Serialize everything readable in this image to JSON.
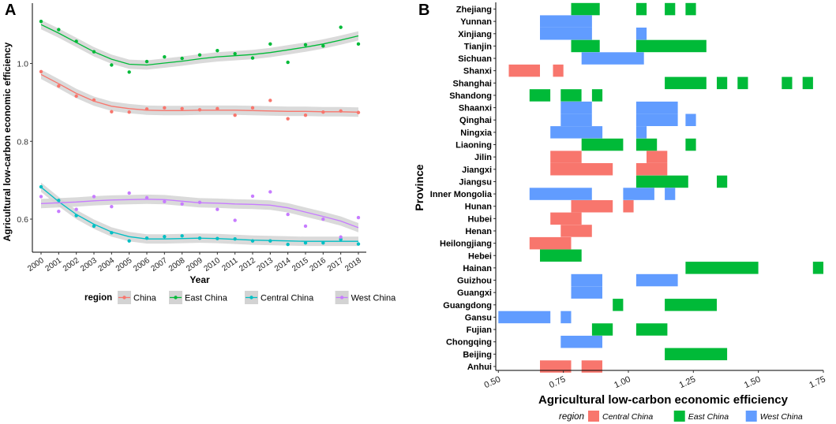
{
  "colors": {
    "China": "#F8766D",
    "East China": "#00BA38",
    "Central China": "#00BFC4",
    "West China": "#C77CFF",
    "B_Central China": "#F8766D",
    "B_East China": "#00BA38",
    "B_West China": "#619CFF",
    "band": "#D3D3D3"
  },
  "panelA": {
    "label": "A",
    "xlabel": "Year",
    "ylabel": "Agricultural low-carbon economic efficiency",
    "legend_title": "region",
    "legend_position": "bottom"
  },
  "panelB": {
    "label": "B",
    "xlabel": "Agricultural low-carbon economic efficiency",
    "ylabel": "Province",
    "legend_title": "region",
    "legend_position": "bottom"
  },
  "chart_data": [
    {
      "type": "scatter",
      "panel": "A",
      "title": "",
      "xlabel": "Year",
      "ylabel": "Agricultural low-carbon economic efficiency",
      "categories": [
        "2000",
        "2001",
        "2002",
        "2003",
        "2004",
        "2005",
        "2006",
        "2007",
        "2008",
        "2009",
        "2010",
        "2011",
        "2012",
        "2013",
        "2014",
        "2015",
        "2016",
        "2017",
        "2018"
      ],
      "yticks": [
        0.6,
        0.8,
        1.0
      ],
      "ylim": [
        0.515,
        1.155
      ],
      "series": [
        {
          "name": "China",
          "values": [
            0.979,
            0.942,
            0.916,
            0.906,
            0.876,
            0.875,
            0.883,
            0.886,
            0.884,
            0.881,
            0.884,
            0.867,
            0.886,
            0.905,
            0.858,
            0.867,
            0.875,
            0.878,
            0.874
          ],
          "smooth": [
            0.972,
            0.948,
            0.923,
            0.903,
            0.89,
            0.884,
            0.88,
            0.879,
            0.879,
            0.88,
            0.88,
            0.88,
            0.879,
            0.878,
            0.877,
            0.877,
            0.876,
            0.876,
            0.875
          ]
        },
        {
          "name": "East China",
          "values": [
            1.108,
            1.087,
            1.057,
            1.03,
            0.996,
            0.978,
            1.005,
            1.017,
            1.013,
            1.022,
            1.033,
            1.025,
            1.014,
            1.05,
            1.003,
            1.048,
            1.045,
            1.093,
            1.05
          ],
          "smooth": [
            1.1,
            1.078,
            1.054,
            1.03,
            1.011,
            0.998,
            0.996,
            1.001,
            1.006,
            1.012,
            1.017,
            1.02,
            1.023,
            1.028,
            1.035,
            1.042,
            1.05,
            1.06,
            1.071
          ]
        },
        {
          "name": "Central China",
          "values": [
            0.683,
            0.648,
            0.609,
            0.582,
            0.565,
            0.544,
            0.551,
            0.555,
            0.557,
            0.551,
            0.55,
            0.549,
            0.544,
            0.544,
            0.535,
            0.539,
            0.539,
            0.548,
            0.536
          ],
          "smooth": [
            0.682,
            0.645,
            0.612,
            0.587,
            0.567,
            0.555,
            0.549,
            0.549,
            0.55,
            0.551,
            0.55,
            0.548,
            0.546,
            0.545,
            0.544,
            0.543,
            0.543,
            0.543,
            0.543
          ]
        },
        {
          "name": "West China",
          "values": [
            0.658,
            0.62,
            0.625,
            0.658,
            0.632,
            0.667,
            0.655,
            0.645,
            0.639,
            0.643,
            0.625,
            0.597,
            0.659,
            0.67,
            0.612,
            0.582,
            0.6,
            0.554,
            0.604
          ],
          "smooth": [
            0.64,
            0.642,
            0.644,
            0.647,
            0.649,
            0.65,
            0.651,
            0.65,
            0.646,
            0.642,
            0.641,
            0.639,
            0.638,
            0.636,
            0.629,
            0.618,
            0.607,
            0.595,
            0.578
          ]
        }
      ]
    },
    {
      "type": "heatmap",
      "panel": "B",
      "title": "",
      "xlabel": "Agricultural low-carbon economic efficiency",
      "ylabel": "Province",
      "xticks": [
        0.5,
        0.75,
        1.0,
        1.25,
        1.5,
        1.75
      ],
      "xtick_labels": [
        "0.50",
        "0.75",
        "1.00",
        "1.25",
        "1.50",
        "1.75"
      ],
      "xlim": [
        0.49,
        1.75
      ],
      "legend": [
        "Central China",
        "East China",
        "West China"
      ],
      "provinces": [
        {
          "name": "Zhejiang",
          "region": "East China",
          "segments": [
            [
              0.78,
              0.89
            ],
            [
              1.03,
              1.07
            ],
            [
              1.14,
              1.18
            ],
            [
              1.22,
              1.26
            ]
          ]
        },
        {
          "name": "Yunnan",
          "region": "West China",
          "segments": [
            [
              0.66,
              0.86
            ]
          ]
        },
        {
          "name": "Xinjiang",
          "region": "West China",
          "segments": [
            [
              0.66,
              0.86
            ],
            [
              1.03,
              1.07
            ]
          ]
        },
        {
          "name": "Tianjin",
          "region": "East China",
          "segments": [
            [
              0.78,
              0.89
            ],
            [
              1.03,
              1.3
            ]
          ]
        },
        {
          "name": "Sichuan",
          "region": "West China",
          "segments": [
            [
              0.82,
              1.06
            ]
          ]
        },
        {
          "name": "Shanxi",
          "region": "Central China",
          "segments": [
            [
              0.54,
              0.66
            ],
            [
              0.71,
              0.75
            ]
          ]
        },
        {
          "name": "Shanghai",
          "region": "East China",
          "segments": [
            [
              1.14,
              1.3
            ],
            [
              1.34,
              1.38
            ],
            [
              1.42,
              1.46
            ],
            [
              1.59,
              1.63
            ],
            [
              1.67,
              1.71
            ]
          ]
        },
        {
          "name": "Shandong",
          "region": "East China",
          "segments": [
            [
              0.62,
              0.7
            ],
            [
              0.74,
              0.82
            ],
            [
              0.86,
              0.9
            ]
          ]
        },
        {
          "name": "Shaanxi",
          "region": "West China",
          "segments": [
            [
              0.74,
              0.86
            ],
            [
              1.03,
              1.19
            ]
          ]
        },
        {
          "name": "Qinghai",
          "region": "West China",
          "segments": [
            [
              0.74,
              0.86
            ],
            [
              1.03,
              1.19
            ],
            [
              1.22,
              1.26
            ]
          ]
        },
        {
          "name": "Ningxia",
          "region": "West China",
          "segments": [
            [
              0.7,
              0.9
            ],
            [
              1.03,
              1.07
            ]
          ]
        },
        {
          "name": "Liaoning",
          "region": "East China",
          "segments": [
            [
              0.82,
              0.98
            ],
            [
              1.03,
              1.11
            ],
            [
              1.22,
              1.26
            ]
          ]
        },
        {
          "name": "Jilin",
          "region": "Central China",
          "segments": [
            [
              0.7,
              0.82
            ],
            [
              1.07,
              1.15
            ]
          ]
        },
        {
          "name": "Jiangxi",
          "region": "Central China",
          "segments": [
            [
              0.7,
              0.94
            ],
            [
              1.03,
              1.07
            ],
            [
              1.07,
              1.15
            ]
          ]
        },
        {
          "name": "Jiangsu",
          "region": "East China",
          "segments": [
            [
              1.03,
              1.23
            ],
            [
              1.34,
              1.38
            ]
          ]
        },
        {
          "name": "Inner Mongolia",
          "region": "West China",
          "segments": [
            [
              0.62,
              0.86
            ],
            [
              0.98,
              1.1
            ],
            [
              1.14,
              1.18
            ]
          ]
        },
        {
          "name": "Hunan",
          "region": "Central China",
          "segments": [
            [
              0.78,
              0.94
            ],
            [
              0.98,
              1.02
            ]
          ]
        },
        {
          "name": "Hubei",
          "region": "Central China",
          "segments": [
            [
              0.7,
              0.82
            ]
          ]
        },
        {
          "name": "Henan",
          "region": "Central China",
          "segments": [
            [
              0.74,
              0.86
            ]
          ]
        },
        {
          "name": "Heilongjiang",
          "region": "Central China",
          "segments": [
            [
              0.62,
              0.78
            ]
          ]
        },
        {
          "name": "Hebei",
          "region": "East China",
          "segments": [
            [
              0.66,
              0.82
            ]
          ]
        },
        {
          "name": "Hainan",
          "region": "East China",
          "segments": [
            [
              1.22,
              1.5
            ],
            [
              1.71,
              1.75
            ]
          ]
        },
        {
          "name": "Guizhou",
          "region": "West China",
          "segments": [
            [
              0.78,
              0.9
            ],
            [
              1.03,
              1.19
            ]
          ]
        },
        {
          "name": "Guangxi",
          "region": "West China",
          "segments": [
            [
              0.78,
              0.9
            ]
          ]
        },
        {
          "name": "Guangdong",
          "region": "East China",
          "segments": [
            [
              0.94,
              0.98
            ],
            [
              1.14,
              1.34
            ]
          ]
        },
        {
          "name": "Gansu",
          "region": "West China",
          "segments": [
            [
              0.5,
              0.7
            ],
            [
              0.74,
              0.78
            ]
          ]
        },
        {
          "name": "Fujian",
          "region": "East China",
          "segments": [
            [
              0.86,
              0.94
            ],
            [
              1.03,
              1.15
            ]
          ]
        },
        {
          "name": "Chongqing",
          "region": "West China",
          "segments": [
            [
              0.74,
              0.9
            ]
          ]
        },
        {
          "name": "Beijing",
          "region": "East China",
          "segments": [
            [
              1.14,
              1.38
            ]
          ]
        },
        {
          "name": "Anhui",
          "region": "Central China",
          "segments": [
            [
              0.66,
              0.78
            ],
            [
              0.82,
              0.9
            ]
          ]
        }
      ]
    }
  ]
}
